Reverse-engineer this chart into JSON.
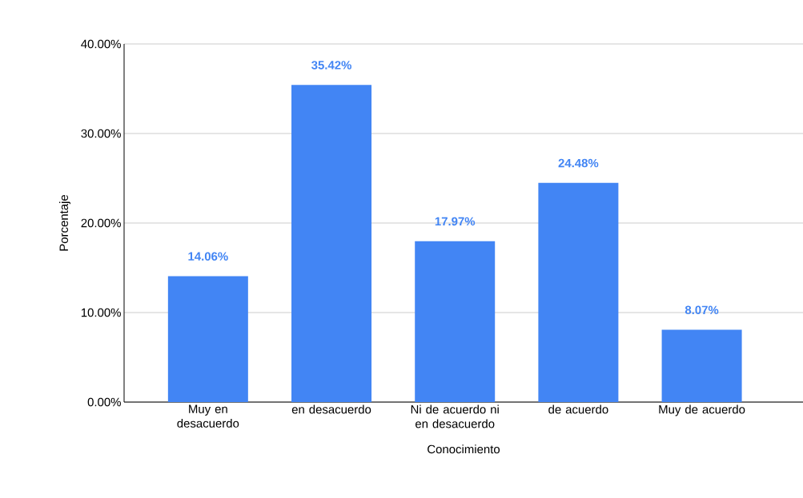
{
  "chart_data": {
    "type": "bar",
    "xlabel": "Conocimiento",
    "ylabel": "Porcentaje",
    "categories": [
      "Muy en desacuerdo",
      "en desacuerdo",
      "Ni de acuerdo ni en desacuerdo",
      "de acuerdo",
      "Muy de acuerdo"
    ],
    "values": [
      14.06,
      35.42,
      17.97,
      24.48,
      8.07
    ],
    "value_labels": [
      "14.06%",
      "35.42%",
      "17.97%",
      "24.48%",
      "8.07%"
    ],
    "color": "#4285f4",
    "ylim": [
      0,
      40
    ],
    "yticks": [
      {
        "value": 0,
        "label": "0.00%"
      },
      {
        "value": 10,
        "label": "10.00%"
      },
      {
        "value": 20,
        "label": "20.00%"
      },
      {
        "value": 30,
        "label": "30.00%"
      },
      {
        "value": 40,
        "label": "40.00%"
      }
    ],
    "grid": "y"
  }
}
